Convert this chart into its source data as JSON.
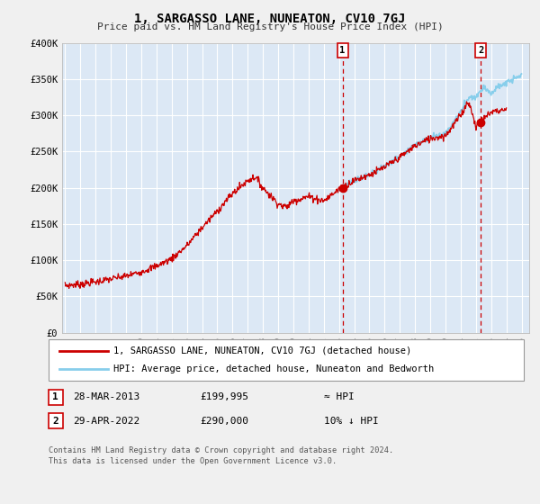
{
  "title": "1, SARGASSO LANE, NUNEATON, CV10 7GJ",
  "subtitle": "Price paid vs. HM Land Registry's House Price Index (HPI)",
  "fig_bg_color": "#f0f0f0",
  "plot_bg_color": "#dce8f5",
  "grid_color": "#ffffff",
  "line_color": "#cc0000",
  "hpi_color": "#87CEEB",
  "ylim": [
    0,
    400000
  ],
  "yticks": [
    0,
    50000,
    100000,
    150000,
    200000,
    250000,
    300000,
    350000,
    400000
  ],
  "ytick_labels": [
    "£0",
    "£50K",
    "£100K",
    "£150K",
    "£200K",
    "£250K",
    "£300K",
    "£350K",
    "£400K"
  ],
  "xlim_start": 1994.8,
  "xlim_end": 2025.5,
  "xtick_years": [
    1995,
    1996,
    1997,
    1998,
    1999,
    2000,
    2001,
    2002,
    2003,
    2004,
    2005,
    2006,
    2007,
    2008,
    2009,
    2010,
    2011,
    2012,
    2013,
    2014,
    2015,
    2016,
    2017,
    2018,
    2019,
    2020,
    2021,
    2022,
    2023,
    2024,
    2025
  ],
  "sale1_x": 2013.23,
  "sale1_y": 199995,
  "sale1_label": "1",
  "sale2_x": 2022.33,
  "sale2_y": 290000,
  "sale2_label": "2",
  "legend_line1": "1, SARGASSO LANE, NUNEATON, CV10 7GJ (detached house)",
  "legend_line2": "HPI: Average price, detached house, Nuneaton and Bedworth",
  "ann1_date": "28-MAR-2013",
  "ann1_price": "£199,995",
  "ann1_hpi": "≈ HPI",
  "ann2_date": "29-APR-2022",
  "ann2_price": "£290,000",
  "ann2_hpi": "10% ↓ HPI",
  "footer1": "Contains HM Land Registry data © Crown copyright and database right 2024.",
  "footer2": "This data is licensed under the Open Government Licence v3.0."
}
